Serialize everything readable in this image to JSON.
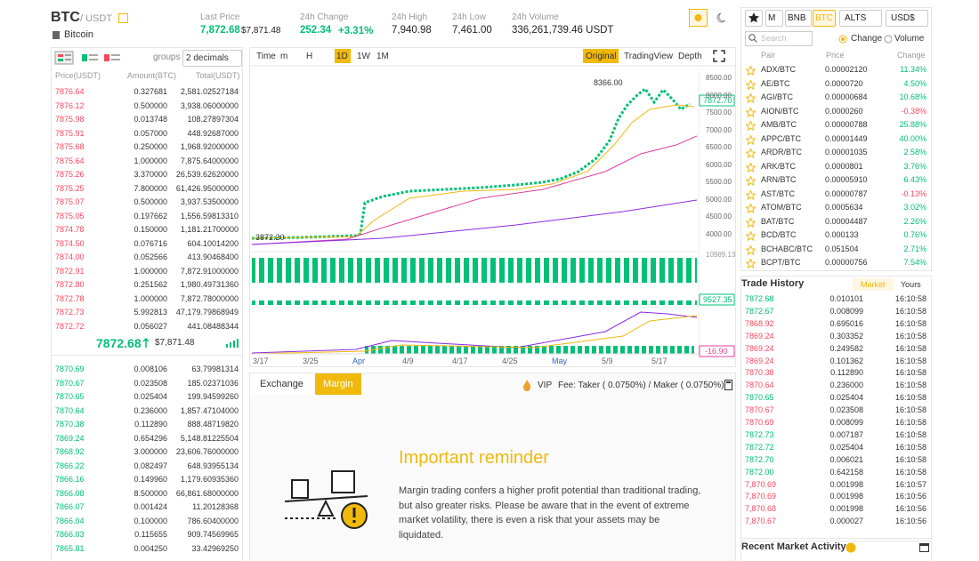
{
  "header": {
    "symbol": "BTC",
    "quote": "/ USDT",
    "name": "Bitcoin",
    "stats": [
      {
        "label": "Last Price",
        "value": "7,872.68",
        "sub": "$7,871.48"
      },
      {
        "label": "24h Change",
        "value": "252.34",
        "sub": "+3.31%"
      },
      {
        "label": "24h High",
        "value": "7,940.98"
      },
      {
        "label": "24h Low",
        "value": "7,461.00"
      },
      {
        "label": "24h Volume",
        "value": "336,261,739.46 USDT"
      }
    ]
  },
  "orderbook": {
    "groups": "groups",
    "decimals": "2 decimals",
    "columns": [
      "Price(USDT)",
      "Amount(BTC)",
      "Total(USDT)"
    ],
    "asks": [
      [
        "7876.64",
        "0.327681",
        "2,581.02527184"
      ],
      [
        "7876.12",
        "0.500000",
        "3,938.06000000"
      ],
      [
        "7875.98",
        "0.013748",
        "108.27897304"
      ],
      [
        "7875.91",
        "0.057000",
        "448.92687000"
      ],
      [
        "7875.68",
        "0.250000",
        "1,968.92000000"
      ],
      [
        "7875.64",
        "1.000000",
        "7,875.64000000"
      ],
      [
        "7875.26",
        "3.370000",
        "26,539.62620000"
      ],
      [
        "7875.25",
        "7.800000",
        "61,426.95000000"
      ],
      [
        "7875.07",
        "0.500000",
        "3,937.53500000"
      ],
      [
        "7875.05",
        "0.197662",
        "1,556.59813310"
      ],
      [
        "7874.78",
        "0.150000",
        "1,181.21700000"
      ],
      [
        "7874.50",
        "0.076716",
        "604.10014200"
      ],
      [
        "7874.00",
        "0.052566",
        "413.90468400"
      ],
      [
        "7872.91",
        "1.000000",
        "7,872.91000000"
      ],
      [
        "7872.80",
        "0.251562",
        "1,980.49731360"
      ],
      [
        "7872.78",
        "1.000000",
        "7,872.78000000"
      ],
      [
        "7872.73",
        "5.992813",
        "47,179.79868949"
      ],
      [
        "7872.72",
        "0.056027",
        "441.08488344"
      ]
    ],
    "last": "7872.68",
    "last_usd": "$7,871.48",
    "bids": [
      [
        "7870.69",
        "0.008106",
        "63.79981314"
      ],
      [
        "7870.67",
        "0.023508",
        "185.02371036"
      ],
      [
        "7870.65",
        "0.025404",
        "199.94599260"
      ],
      [
        "7870.64",
        "0.236000",
        "1,857.47104000"
      ],
      [
        "7870.38",
        "0.112890",
        "888.48719820"
      ],
      [
        "7869.24",
        "0.654296",
        "5,148.81225504"
      ],
      [
        "7868.92",
        "3.000000",
        "23,606.76000000"
      ],
      [
        "7866.22",
        "0.082497",
        "648.93955134"
      ],
      [
        "7866.16",
        "0.149960",
        "1,179.60935360"
      ],
      [
        "7866.08",
        "8.500000",
        "66,861.68000000"
      ],
      [
        "7866.07",
        "0.001424",
        "11.20128368"
      ],
      [
        "7866.04",
        "0.100000",
        "786.60400000"
      ],
      [
        "7866.03",
        "0.115655",
        "909.74569965"
      ],
      [
        "7865.81",
        "0.004250",
        "33.42969250"
      ]
    ]
  },
  "chart": {
    "intervals": [
      "Time",
      "m",
      "H",
      "1D",
      "1W",
      "1M"
    ],
    "views": [
      "Original",
      "TradingView",
      "Depth"
    ],
    "price_labels": [
      "8500.00",
      "8000.00",
      "7500.00",
      "7000.00",
      "6500.00",
      "6000.00",
      "5500.00",
      "5000.00",
      "4500.00",
      "4000.00"
    ],
    "high": "8366.00",
    "low": "3872.20",
    "current": "7872.70",
    "volume_max": "10989.13",
    "volume_current": "9527.35",
    "macd": "-16.90",
    "dates": [
      "3/17",
      "3/25",
      "Apr",
      "4/9",
      "4/17",
      "4/25",
      "May",
      "5/9",
      "5/17"
    ]
  },
  "trade_panel": {
    "tabs": [
      "Exchange",
      "Margin"
    ],
    "vip": "VIP",
    "fee": "Fee: Taker ( 0.0750%) / Maker ( 0.0750%)",
    "reminder_title": "Important reminder",
    "reminder_text": "Margin trading confers a higher profit potential than traditional trading, but also greater risks. Please be aware that in the event of extreme market volatility, there is even a risk that your assets may be liquidated."
  },
  "markets": {
    "tabs": [
      "M",
      "BNB",
      "BTC",
      "ALTS",
      "USD$"
    ],
    "search": "Search",
    "sort": [
      "Change",
      "Volume"
    ],
    "columns": [
      "Pair",
      "Price",
      "Change"
    ],
    "rows": [
      [
        "ADX/BTC",
        "0.00002120",
        "11.34%"
      ],
      [
        "AE/BTC",
        "0.0000720",
        "4.50%"
      ],
      [
        "AGI/BTC",
        "0.00000684",
        "10.68%"
      ],
      [
        "AION/BTC",
        "0.0000260",
        "-0.38%"
      ],
      [
        "AMB/BTC",
        "0.00000788",
        "25.88%"
      ],
      [
        "APPC/BTC",
        "0.00001449",
        "40.00%"
      ],
      [
        "ARDR/BTC",
        "0.00001035",
        "2.58%"
      ],
      [
        "ARK/BTC",
        "0.0000801",
        "3.76%"
      ],
      [
        "ARN/BTC",
        "0.00005910",
        "6.43%"
      ],
      [
        "AST/BTC",
        "0.00000787",
        "-0.13%"
      ],
      [
        "ATOM/BTC",
        "0.0005634",
        "3.02%"
      ],
      [
        "BAT/BTC",
        "0.00004487",
        "2.26%"
      ],
      [
        "BCD/BTC",
        "0.000133",
        "0.76%"
      ],
      [
        "BCHABC/BTC",
        "0.051504",
        "2.71%"
      ],
      [
        "BCPT/BTC",
        "0.00000756",
        "7.54%"
      ]
    ]
  },
  "trade_history": {
    "title": "Trade History",
    "tabs": [
      "Market",
      "Yours"
    ],
    "rows": [
      [
        "7872.68",
        "0.010101",
        "16:10:58",
        "#02c076"
      ],
      [
        "7872.67",
        "0.008099",
        "16:10:58",
        "#02c076"
      ],
      [
        "7868.92",
        "0.695016",
        "16:10:58",
        "#f84960"
      ],
      [
        "7869.24",
        "0.303352",
        "16:10:58",
        "#f84960"
      ],
      [
        "7869.24",
        "0.249582",
        "16:10:58",
        "#f84960"
      ],
      [
        "7869.24",
        "0.101362",
        "16:10:58",
        "#f84960"
      ],
      [
        "7870.38",
        "0.112890",
        "16:10:58",
        "#f84960"
      ],
      [
        "7870.64",
        "0.236000",
        "16:10:58",
        "#f84960"
      ],
      [
        "7870.65",
        "0.025404",
        "16:10:58",
        "#02c076"
      ],
      [
        "7870.67",
        "0.023508",
        "16:10:58",
        "#f84960"
      ],
      [
        "7870.69",
        "0.008099",
        "16:10:58",
        "#f84960"
      ],
      [
        "7872.73",
        "0.007187",
        "16:10:58",
        "#02c076"
      ],
      [
        "7872.72",
        "0.025404",
        "16:10:58",
        "#02c076"
      ],
      [
        "7872.70",
        "0.006021",
        "16:10:58",
        "#02c076"
      ],
      [
        "7872.00",
        "0.642158",
        "16:10:58",
        "#02c076"
      ],
      [
        "7,870.69",
        "0.001998",
        "16:10:57",
        "#f84960"
      ],
      [
        "7,870.69",
        "0.001998",
        "16:10:56",
        "#f84960"
      ],
      [
        "7,870.68",
        "0.001998",
        "16:10:56",
        "#f84960"
      ],
      [
        "7,870.67",
        "0.000027",
        "16:10:56",
        "#f84960"
      ]
    ]
  },
  "recent_activity": {
    "title": "Recent Market Activity"
  }
}
